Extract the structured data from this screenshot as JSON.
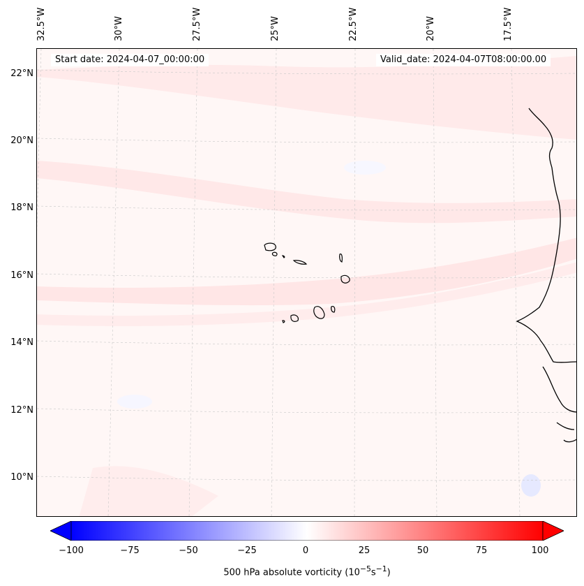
{
  "map": {
    "start_date": "Start date: 2024-04-07_00:00:00",
    "valid_date": "Valid_date: 2024-04-07T08:00:00.00",
    "lat_labels": [
      "22°N",
      "20°N",
      "18°N",
      "16°N",
      "14°N",
      "12°N",
      "10°N"
    ],
    "lon_labels": [
      "32.5°W",
      "30°W",
      "27.5°W",
      "25°W",
      "22.5°W",
      "20°W",
      "17.5°W"
    ]
  },
  "colorbar": {
    "label": "500 hPa absolute vorticity (10",
    "label_exp1": "−5",
    "label_mid": "s",
    "label_exp2": "−1",
    "label_end": ")",
    "ticks": [
      "−100",
      "−75",
      "−50",
      "−25",
      "0",
      "25",
      "50",
      "75",
      "100"
    ],
    "range": [
      -100,
      100
    ],
    "colors": {
      "low": "#0000ff",
      "mid": "#ffffff",
      "high": "#ff0000"
    }
  },
  "colors": {
    "coastline": "#000000",
    "gridline": "#b0b0b0",
    "background": "#fff7f6",
    "band": "#ffe6e6"
  }
}
